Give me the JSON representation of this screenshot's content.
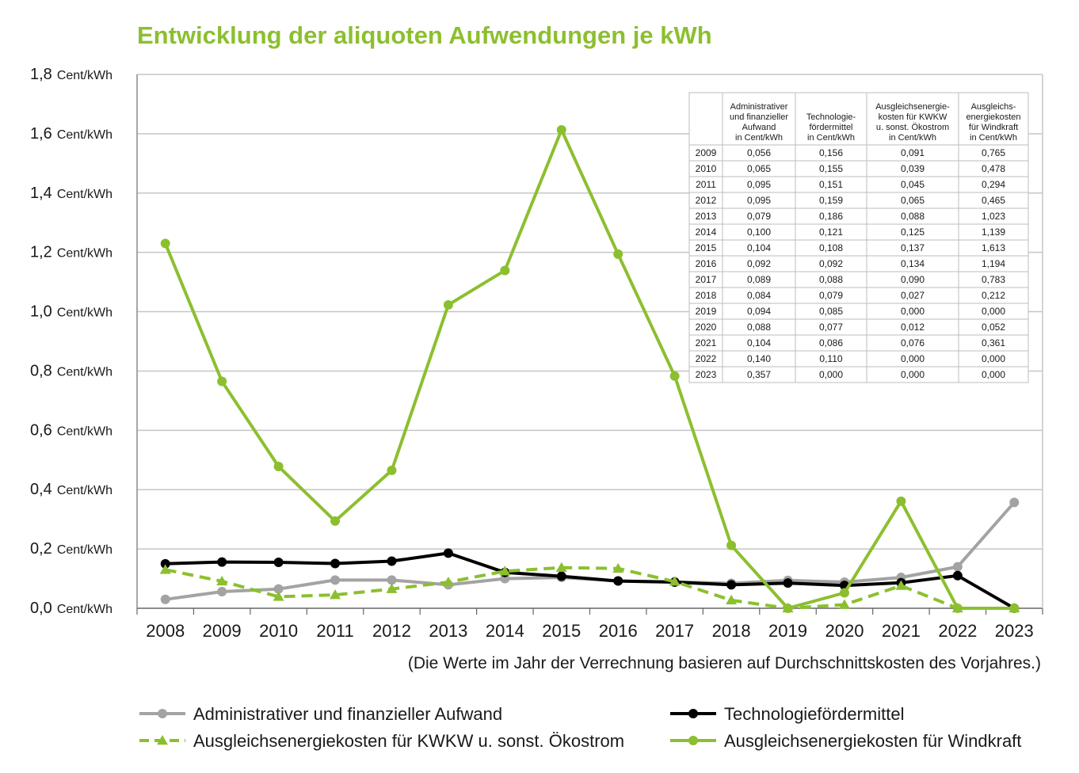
{
  "chart_data": {
    "type": "line",
    "title": "Entwicklung der aliquoten Aufwendungen je kWh",
    "x": [
      "2008",
      "2009",
      "2010",
      "2011",
      "2012",
      "2013",
      "2014",
      "2015",
      "2016",
      "2017",
      "2018",
      "2019",
      "2020",
      "2021",
      "2022",
      "2023"
    ],
    "ylim": [
      0,
      1.8
    ],
    "y_ticks": [
      "0,0",
      "0,2",
      "0,4",
      "0,6",
      "0,8",
      "1,0",
      "1,2",
      "1,4",
      "1,6",
      "1,8"
    ],
    "y_unit": "Cent/kWh",
    "grid": true,
    "note": "(Die Werte im Jahr der Verrechnung basieren auf Durchschnittskosten des Vorjahres.)",
    "series": [
      {
        "name": "Administrativer und finanzieller Aufwand",
        "color": "#a3a3a3",
        "style": "solid",
        "marker": "circle",
        "values": [
          0.03,
          0.056,
          0.065,
          0.095,
          0.095,
          0.079,
          0.1,
          0.104,
          0.092,
          0.089,
          0.084,
          0.094,
          0.088,
          0.104,
          0.14,
          0.357
        ]
      },
      {
        "name": "Technologiefördermittel",
        "color": "#000000",
        "style": "solid",
        "marker": "circle",
        "values": [
          0.15,
          0.156,
          0.155,
          0.151,
          0.159,
          0.186,
          0.121,
          0.108,
          0.092,
          0.088,
          0.079,
          0.085,
          0.077,
          0.086,
          0.11,
          0.0
        ]
      },
      {
        "name": "Ausgleichsenergiekosten für KWKW u. sonst. Ökostrom",
        "color": "#8cbf2f",
        "style": "dashed",
        "marker": "triangle",
        "values": [
          0.13,
          0.091,
          0.039,
          0.045,
          0.065,
          0.088,
          0.125,
          0.137,
          0.134,
          0.09,
          0.027,
          0.0,
          0.012,
          0.076,
          0.0,
          0.0
        ]
      },
      {
        "name": "Ausgleichsenergiekosten für Windkraft",
        "color": "#8cbf2f",
        "style": "solid",
        "marker": "circle",
        "values": [
          1.23,
          0.765,
          0.478,
          0.294,
          0.465,
          1.023,
          1.139,
          1.613,
          1.194,
          0.783,
          0.212,
          0.0,
          0.052,
          0.361,
          0.0,
          0.0
        ]
      }
    ],
    "legend": "bottom",
    "table": {
      "headers": [
        "",
        "Administrativer und finanzieller Aufwand in Cent/kWh",
        "Technologie- fördermittel in Cent/kWh",
        "Ausgleichsenergie- kosten für KWKW u. sonst. Ökostrom in Cent/kWh",
        "Ausgleichs- energiekosten für Windkraft in Cent/kWh"
      ],
      "header_lines": [
        [],
        [
          "Administrativer",
          "und finanzieller",
          "Aufwand",
          "in Cent/kWh"
        ],
        [
          "Technologie-",
          "fördermittel",
          "in Cent/kWh"
        ],
        [
          "Ausgleichsenergie-",
          "kosten für KWKW",
          "u. sonst. Ökostrom",
          "in Cent/kWh"
        ],
        [
          "Ausgleichs-",
          "energiekosten",
          "für Windkraft",
          "in Cent/kWh"
        ]
      ],
      "rows": [
        [
          "2009",
          "0,056",
          "0,156",
          "0,091",
          "0,765"
        ],
        [
          "2010",
          "0,065",
          "0,155",
          "0,039",
          "0,478"
        ],
        [
          "2011",
          "0,095",
          "0,151",
          "0,045",
          "0,294"
        ],
        [
          "2012",
          "0,095",
          "0,159",
          "0,065",
          "0,465"
        ],
        [
          "2013",
          "0,079",
          "0,186",
          "0,088",
          "1,023"
        ],
        [
          "2014",
          "0,100",
          "0,121",
          "0,125",
          "1,139"
        ],
        [
          "2015",
          "0,104",
          "0,108",
          "0,137",
          "1,613"
        ],
        [
          "2016",
          "0,092",
          "0,092",
          "0,134",
          "1,194"
        ],
        [
          "2017",
          "0,089",
          "0,088",
          "0,090",
          "0,783"
        ],
        [
          "2018",
          "0,084",
          "0,079",
          "0,027",
          "0,212"
        ],
        [
          "2019",
          "0,094",
          "0,085",
          "0,000",
          "0,000"
        ],
        [
          "2020",
          "0,088",
          "0,077",
          "0,012",
          "0,052"
        ],
        [
          "2021",
          "0,104",
          "0,086",
          "0,076",
          "0,361"
        ],
        [
          "2022",
          "0,140",
          "0,110",
          "0,000",
          "0,000"
        ],
        [
          "2023",
          "0,357",
          "0,000",
          "0,000",
          "0,000"
        ]
      ]
    }
  }
}
